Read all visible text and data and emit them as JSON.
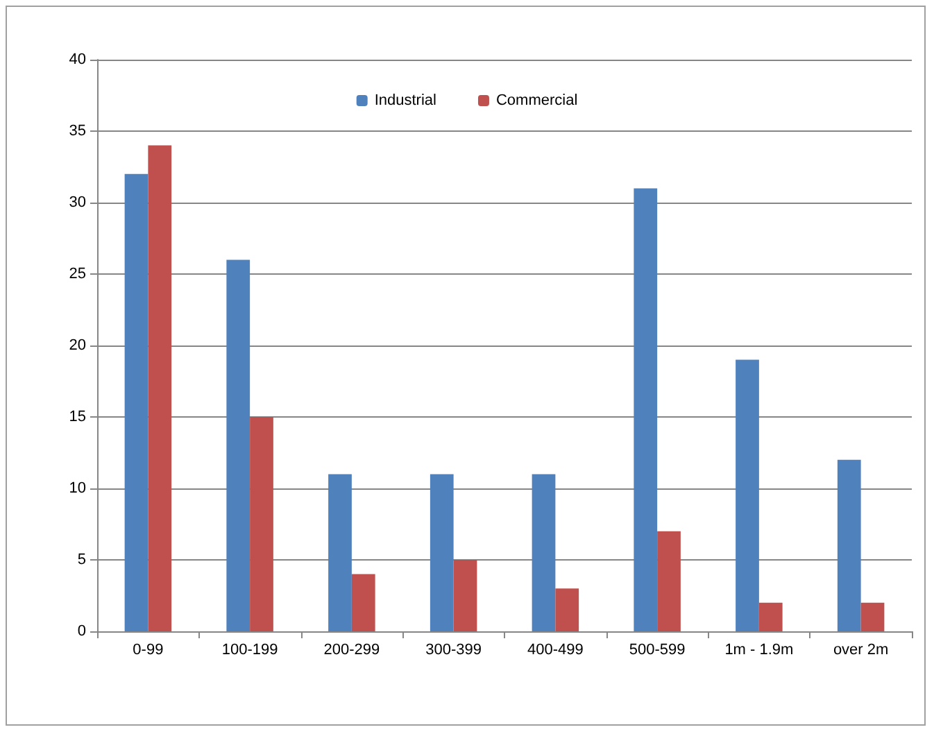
{
  "chart_data": {
    "type": "bar",
    "categories": [
      "0-99",
      "100-199",
      "200-299",
      "300-399",
      "400-499",
      "500-599",
      "1m - 1.9m",
      "over 2m"
    ],
    "series": [
      {
        "name": "Industrial",
        "color": "#4f81bd",
        "values": [
          32,
          26,
          11,
          11,
          11,
          31,
          19,
          12
        ]
      },
      {
        "name": "Commercial",
        "color": "#c0504d",
        "values": [
          34,
          15,
          4,
          5,
          3,
          7,
          2,
          2
        ]
      }
    ],
    "ylim": [
      0,
      40
    ],
    "yticks": [
      0,
      5,
      10,
      15,
      20,
      25,
      30,
      35,
      40
    ],
    "grid": "y",
    "legend": "top"
  }
}
